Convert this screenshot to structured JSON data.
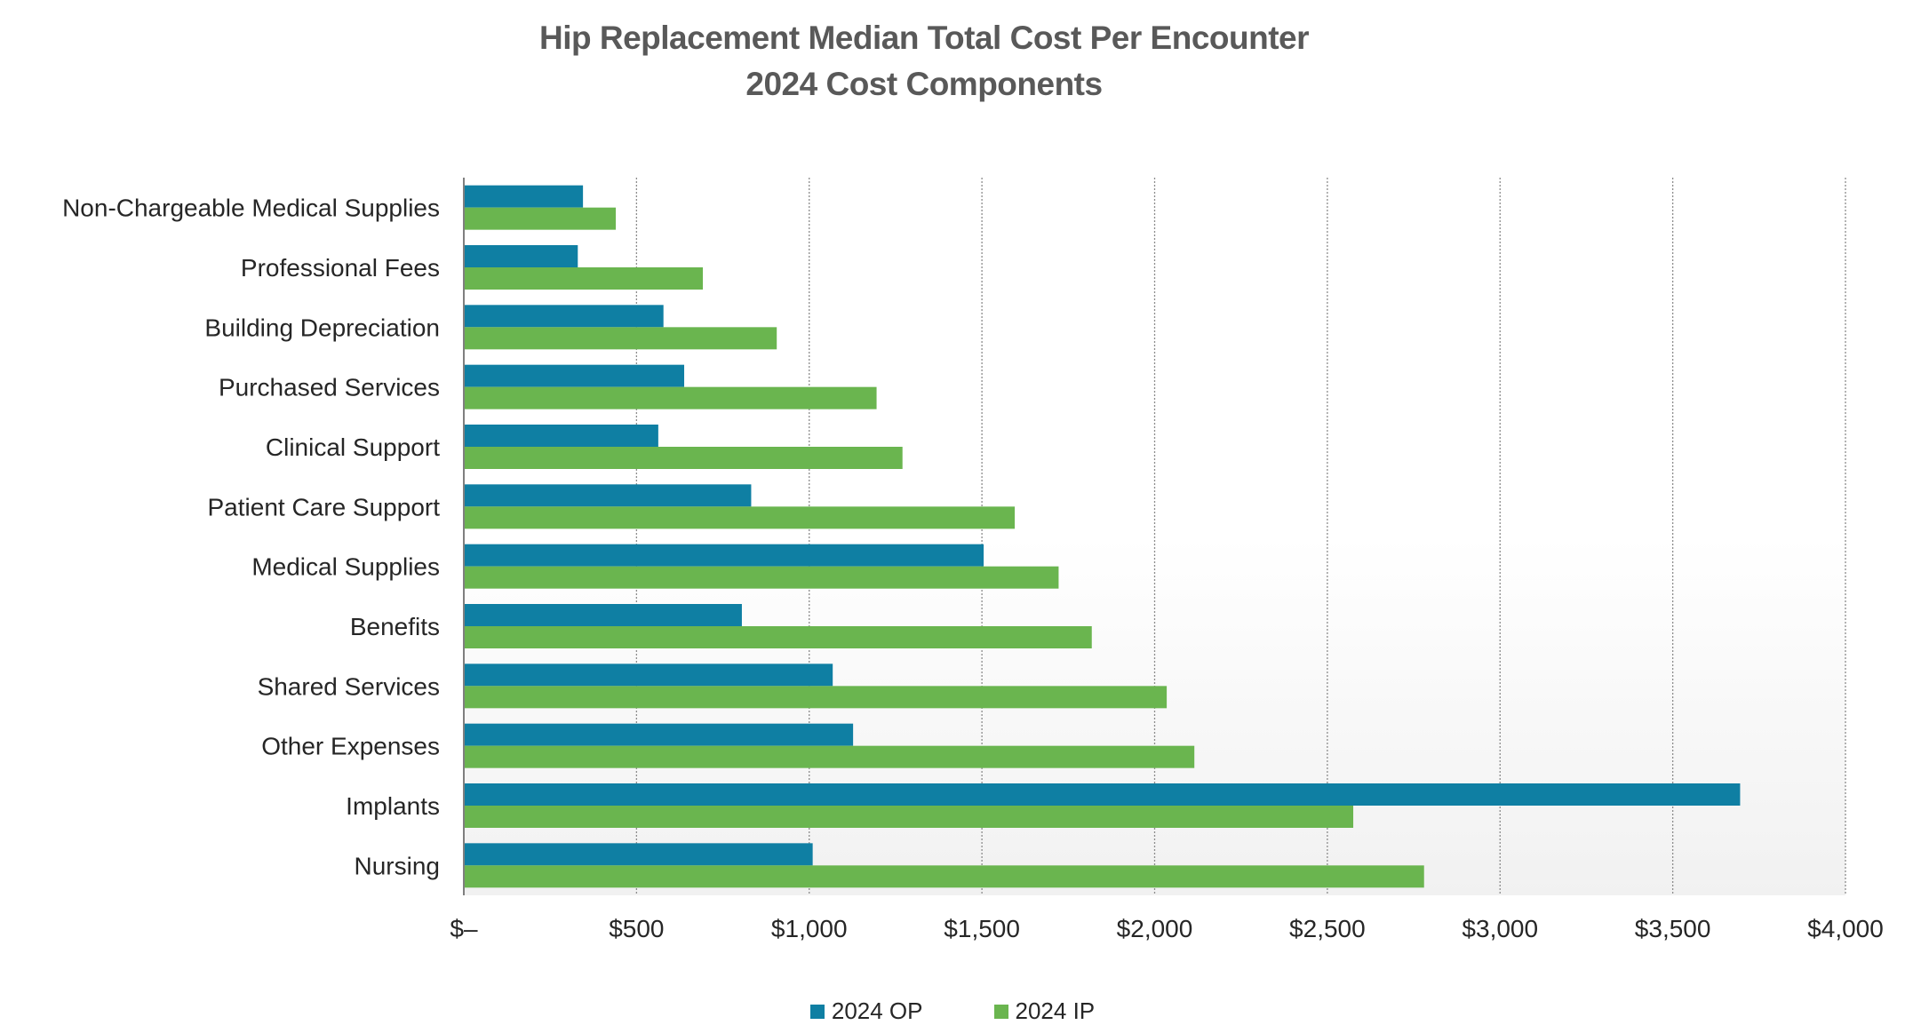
{
  "chart_data": {
    "type": "bar",
    "orientation": "horizontal",
    "title": "Hip Replacement Median Total Cost Per Encounter",
    "subtitle": "2024 Cost Components",
    "categories": [
      "Non-Chargeable Medical Supplies",
      "Professional Fees",
      "Building Depreciation",
      "Purchased Services",
      "Clinical Support",
      "Patient Care Support",
      "Medical Supplies",
      "Benefits",
      "Shared Services",
      "Other Expenses",
      "Implants",
      "Nursing"
    ],
    "series": [
      {
        "name": "2024 OP",
        "color": "#0F7FA3",
        "values": [
          345,
          330,
          578,
          638,
          563,
          832,
          1505,
          805,
          1068,
          1127,
          3695,
          1010
        ]
      },
      {
        "name": "2024 IP",
        "color": "#6AB54F",
        "values": [
          440,
          692,
          906,
          1195,
          1270,
          1595,
          1722,
          1818,
          2035,
          2115,
          2575,
          2780
        ]
      }
    ],
    "xlim": [
      0,
      4000
    ],
    "x_ticks": [
      {
        "value": 0,
        "label": "$–"
      },
      {
        "value": 500,
        "label": "$500"
      },
      {
        "value": 1000,
        "label": "$1,000"
      },
      {
        "value": 1500,
        "label": "$1,500"
      },
      {
        "value": 2000,
        "label": "$2,000"
      },
      {
        "value": 2500,
        "label": "$2,500"
      },
      {
        "value": 3000,
        "label": "$3,000"
      },
      {
        "value": 3500,
        "label": "$3,500"
      },
      {
        "value": 4000,
        "label": "$4,000"
      }
    ],
    "xlabel": "",
    "ylabel": "",
    "grid": "vertical dotted",
    "legend_position": "bottom"
  }
}
